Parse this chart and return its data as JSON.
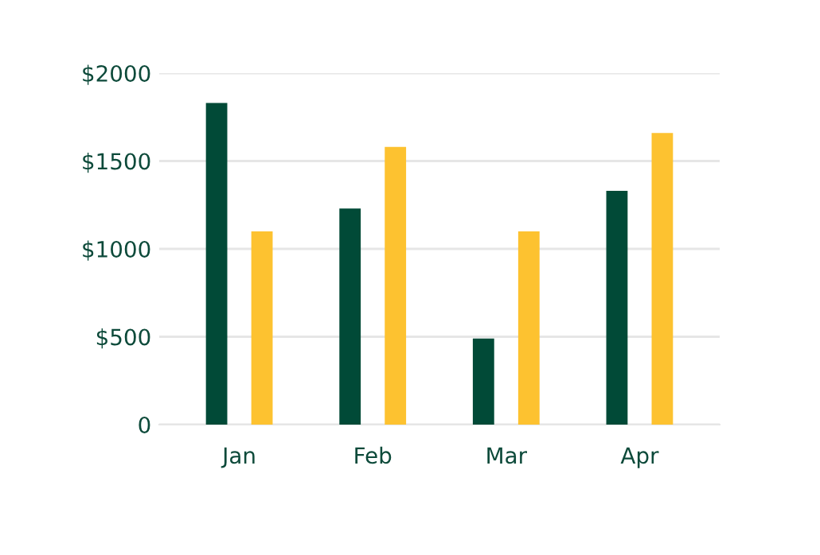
{
  "chart_data": {
    "type": "bar",
    "categories": [
      "Jan",
      "Feb",
      "Mar",
      "Apr"
    ],
    "series": [
      {
        "color": "#014a37",
        "values": [
          1830,
          1230,
          490,
          1330
        ]
      },
      {
        "color": "#fdc230",
        "values": [
          1100,
          1580,
          1100,
          1660
        ]
      }
    ],
    "ylim": [
      0,
      2000
    ],
    "yticks": [
      {
        "value": 0,
        "label": "0"
      },
      {
        "value": 500,
        "label": "$500"
      },
      {
        "value": 1000,
        "label": "$1000"
      },
      {
        "value": 1500,
        "label": "$1500"
      },
      {
        "value": 2000,
        "label": "$2000"
      }
    ],
    "grid": "y",
    "legend": false
  }
}
